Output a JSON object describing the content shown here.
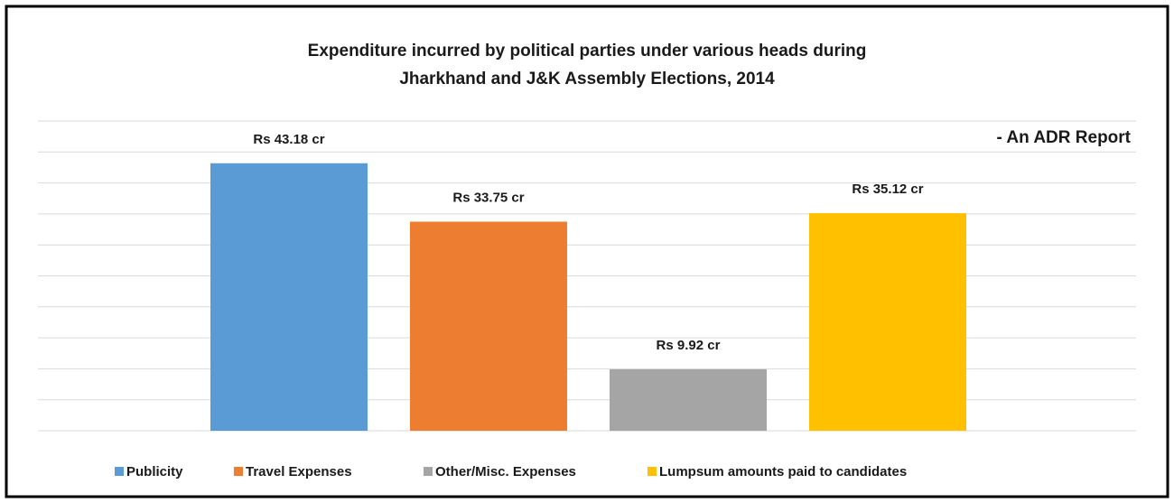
{
  "chart_data": {
    "type": "bar",
    "title": [
      "Expenditure incurred by political parties under various heads during",
      "Jharkhand and J&K Assembly Elections, 2014"
    ],
    "annotation": "- An ADR Report",
    "series": [
      {
        "name": "Publicity",
        "color": "#5b9bd5",
        "values": [
          43.18
        ],
        "value_labels": [
          "Rs 43.18 cr"
        ]
      },
      {
        "name": "Travel Expenses",
        "color": "#ed7d31",
        "values": [
          33.75
        ],
        "value_labels": [
          "Rs 33.75 cr"
        ]
      },
      {
        "name": "Other/Misc. Expenses",
        "color": "#a5a5a5",
        "values": [
          9.92
        ],
        "value_labels": [
          "Rs 9.92 cr"
        ]
      },
      {
        "name": "Lumpsum amounts paid to candidates",
        "color": "#ffc000",
        "values": [
          35.12
        ],
        "value_labels": [
          "Rs 35.12 cr"
        ]
      }
    ],
    "ylim": [
      0,
      50
    ],
    "yticks": [
      0,
      5,
      10,
      15,
      20,
      25,
      30,
      35,
      40,
      45,
      50
    ],
    "grid": true,
    "legend": "bottom"
  }
}
